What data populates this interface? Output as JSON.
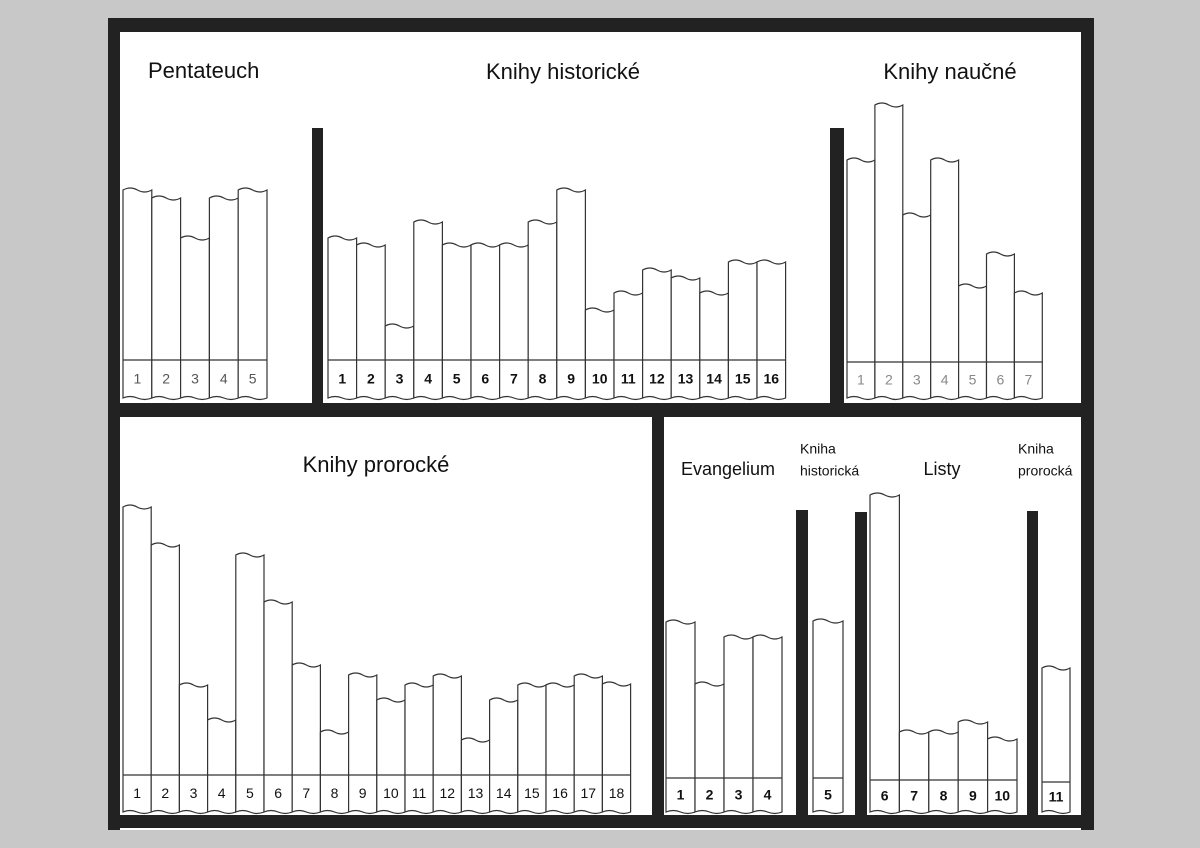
{
  "shelves": [
    {
      "title": [
        "Pentateuch"
      ],
      "books": [
        "1",
        "2",
        "3",
        "4",
        "5"
      ]
    },
    {
      "title": [
        "Knihy historické"
      ],
      "books": [
        "1",
        "2",
        "3",
        "4",
        "5",
        "6",
        "7",
        "8",
        "9",
        "10",
        "11",
        "12",
        "13",
        "14",
        "15",
        "16"
      ]
    },
    {
      "title": [
        "Knihy naučné"
      ],
      "books": [
        "1",
        "2",
        "3",
        "4",
        "5",
        "6",
        "7"
      ]
    },
    {
      "title": [
        "Knihy prorocké"
      ],
      "books": [
        "1",
        "2",
        "3",
        "4",
        "5",
        "6",
        "7",
        "8",
        "9",
        "10",
        "11",
        "12",
        "13",
        "14",
        "15",
        "16",
        "17",
        "18"
      ]
    },
    {
      "title": [
        "Evangelium"
      ],
      "books": [
        "1",
        "2",
        "3",
        "4"
      ]
    },
    {
      "title": [
        "Kniha",
        "historická"
      ],
      "books": [
        "5"
      ]
    },
    {
      "title": [
        "Listy"
      ],
      "books": [
        "6",
        "7",
        "8",
        "9",
        "10"
      ]
    },
    {
      "title": [
        "Kniha",
        "prorocká"
      ],
      "books": [
        "11"
      ]
    }
  ]
}
